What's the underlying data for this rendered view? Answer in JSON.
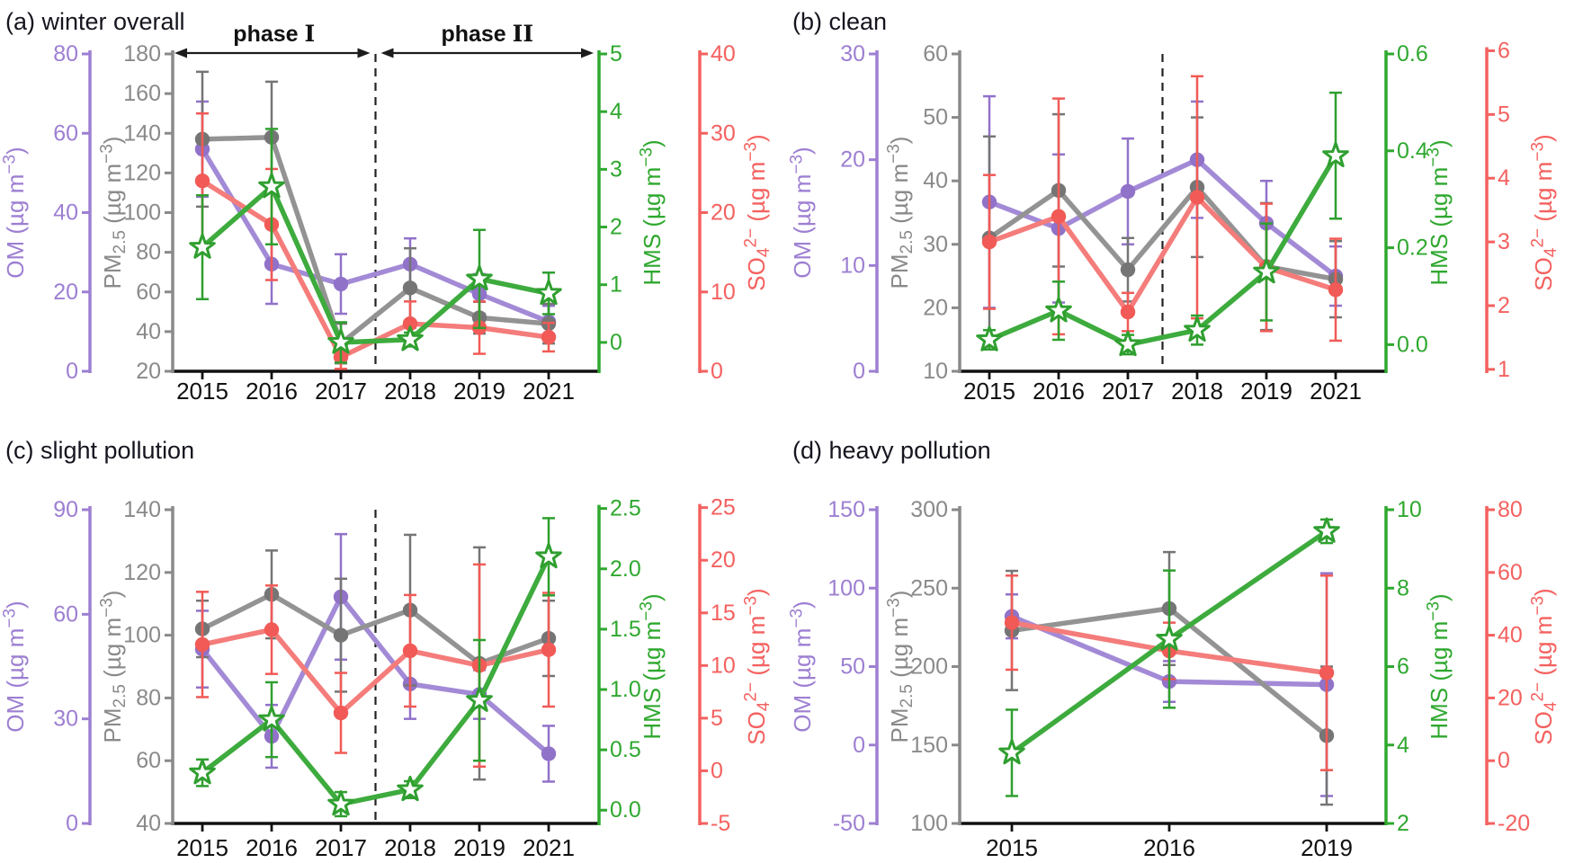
{
  "figure": {
    "background": "#ffffff",
    "text_color": "#15151f",
    "axis_black": "#111111"
  },
  "chart_data": {
    "type": "line",
    "description": "Four-panel multi-axis annual time series of OM, PM2.5, HMS and sulfate concentrations",
    "series_meta": {
      "om": {
        "name": "OM",
        "marker": "circle",
        "line_color": "#a38ad6",
        "marker_color": "#9172c9",
        "axis_color": "#9d7fd2",
        "axis_title_tokens": [
          [
            "t",
            "OM (µg m"
          ],
          [
            "sup",
            "−3"
          ],
          [
            "t",
            ")"
          ]
        ]
      },
      "pm": {
        "name": "PM2.5",
        "marker": "circle",
        "line_color": "#939393",
        "marker_color": "#757575",
        "axis_color": "#8a8a8a",
        "axis_title_tokens": [
          [
            "t",
            "PM"
          ],
          [
            "sub",
            "2.5"
          ],
          [
            "t",
            " (µg m"
          ],
          [
            "sup",
            "−3"
          ],
          [
            "t",
            ")"
          ]
        ]
      },
      "so4": {
        "name": "SO4 2−",
        "marker": "circle",
        "line_color": "#f47c7a",
        "marker_color": "#f15a56",
        "axis_color": "#f4615f",
        "axis_title_tokens": [
          [
            "t",
            "SO"
          ],
          [
            "sub",
            "4"
          ],
          [
            "sup",
            "2−"
          ],
          [
            "t",
            " (µg m"
          ],
          [
            "sup",
            "−3"
          ],
          [
            "t",
            ")"
          ]
        ]
      },
      "hms": {
        "name": "HMS",
        "marker": "star",
        "line_color": "#3dab3d",
        "marker_color": "#ffffff",
        "marker_stroke": "#2f9f2f",
        "axis_color": "#2fa82f",
        "axis_title_tokens": [
          [
            "t",
            "HMS (µg m"
          ],
          [
            "sup",
            "−3"
          ],
          [
            "t",
            ")"
          ]
        ]
      }
    },
    "panels": [
      {
        "key": "a",
        "row": 0,
        "col": 0,
        "title": "(a) winter overall",
        "x_labels": [
          "2015",
          "2016",
          "2017",
          "2018",
          "2019",
          "2021"
        ],
        "divider_between_indices": [
          2,
          3
        ],
        "phase_labels": [
          "phase I",
          "phase II"
        ],
        "axes": {
          "om": {
            "scale": [
              0,
              80
            ],
            "ticks": [
              0,
              20,
              40,
              60,
              80
            ],
            "tick_labels": [
              "0",
              "20",
              "40",
              "60",
              "80"
            ]
          },
          "pm": {
            "scale": [
              20,
              180
            ],
            "ticks": [
              20,
              40,
              60,
              80,
              100,
              120,
              140,
              160,
              180
            ],
            "tick_labels": [
              "20",
              "40",
              "60",
              "80",
              "100",
              "120",
              "140",
              "160",
              "180"
            ]
          },
          "hms": {
            "scale": [
              -0.5,
              5
            ],
            "ticks": [
              0,
              1,
              2,
              3,
              4,
              5
            ],
            "tick_labels": [
              "0",
              "1",
              "2",
              "3",
              "4",
              "5"
            ]
          },
          "so4": {
            "scale": [
              0,
              40
            ],
            "ticks": [
              0,
              10,
              20,
              30,
              40
            ],
            "tick_labels": [
              "0",
              "10",
              "20",
              "30",
              "40"
            ]
          }
        },
        "series": {
          "om": {
            "values": [
              56,
              27,
              22,
              27,
              19.5,
              12.5
            ],
            "err": [
              12,
              10,
              7.5,
              6.5,
              5,
              4
            ]
          },
          "pm": {
            "values": [
              137,
              138,
              34,
              62,
              47,
              44
            ],
            "err": [
              34,
              28,
              10,
              20,
              8,
              10
            ]
          },
          "so4": {
            "values": [
              24,
              18.5,
              1.8,
              6,
              5.5,
              4.3
            ],
            "err": [
              8.5,
              7,
              1.5,
              2.8,
              3.3,
              1.8
            ]
          },
          "hms": {
            "values": [
              1.65,
              2.7,
              0.0,
              0.05,
              1.1,
              0.85
            ],
            "err": [
              0.9,
              1.0,
              0.35,
              0.12,
              0.85,
              0.36
            ]
          }
        }
      },
      {
        "key": "b",
        "row": 0,
        "col": 1,
        "title": "(b) clean",
        "x_labels": [
          "2015",
          "2016",
          "2017",
          "2018",
          "2019",
          "2021"
        ],
        "divider_between_indices": [
          2,
          3
        ],
        "phase_labels": null,
        "axes": {
          "om": {
            "scale": [
              0,
              30
            ],
            "ticks": [
              0,
              10,
              20,
              30
            ],
            "tick_labels": [
              "0",
              "10",
              "20",
              "30"
            ]
          },
          "pm": {
            "scale": [
              10,
              60
            ],
            "ticks": [
              10,
              20,
              30,
              40,
              50,
              60
            ],
            "tick_labels": [
              "10",
              "20",
              "30",
              "40",
              "50",
              "60"
            ]
          },
          "hms": {
            "scale": [
              -0.055,
              0.6
            ],
            "ticks": [
              0,
              0.2,
              0.4,
              0.6
            ],
            "tick_labels": [
              "0.0",
              "0.2",
              "0.4",
              "0.6"
            ]
          },
          "so4": {
            "scale": [
              0.97,
              5.95
            ],
            "ticks": [
              1,
              2,
              3,
              4,
              5,
              6
            ],
            "tick_labels": [
              "1",
              "2",
              "3",
              "4",
              "5",
              "6"
            ]
          }
        },
        "series": {
          "om": {
            "values": [
              16,
              13.5,
              17,
              20,
              14,
              9
            ],
            "err": [
              10,
              7,
              5,
              5.5,
              4,
              2.8
            ]
          },
          "pm": {
            "values": [
              31,
              38.5,
              26,
              39,
              26.5,
              24.5
            ],
            "err": [
              16,
              12,
              5,
              11,
              10,
              6
            ]
          },
          "so4": {
            "values": [
              3.0,
              3.4,
              1.9,
              3.7,
              2.6,
              2.25
            ],
            "err": [
              1.05,
              1.85,
              0.3,
              1.9,
              1.0,
              0.8
            ]
          },
          "hms": {
            "values": [
              0.01,
              0.07,
              0.0,
              0.03,
              0.15,
              0.39
            ],
            "err": [
              0.02,
              0.06,
              0.02,
              0.03,
              0.1,
              0.13
            ]
          }
        }
      },
      {
        "key": "c",
        "row": 1,
        "col": 0,
        "title": "(c) slight pollution",
        "x_labels": [
          "2015",
          "2016",
          "2017",
          "2018",
          "2019",
          "2021"
        ],
        "divider_between_indices": [
          2,
          3
        ],
        "phase_labels": null,
        "axes": {
          "om": {
            "scale": [
              0,
              90
            ],
            "ticks": [
              0,
              30,
              60,
              90
            ],
            "tick_labels": [
              "0",
              "30",
              "60",
              "90"
            ]
          },
          "pm": {
            "scale": [
              40,
              140
            ],
            "ticks": [
              40,
              60,
              80,
              100,
              120,
              140
            ],
            "tick_labels": [
              "40",
              "60",
              "80",
              "100",
              "120",
              "140"
            ]
          },
          "hms": {
            "scale": [
              -0.11,
              2.49
            ],
            "ticks": [
              0,
              0.5,
              1,
              1.5,
              2,
              2.5
            ],
            "tick_labels": [
              "0.0",
              "0.5",
              "1.0",
              "1.5",
              "2.0",
              "2.5"
            ]
          },
          "so4": {
            "scale": [
              -5,
              24.8
            ],
            "ticks": [
              -5,
              0,
              5,
              10,
              15,
              20,
              25
            ],
            "tick_labels": [
              "-5",
              "0",
              "5",
              "10",
              "15",
              "20",
              "25"
            ]
          }
        },
        "series": {
          "om": {
            "values": [
              50,
              25,
              65,
              40,
              37,
              20
            ],
            "err": [
              11,
              9,
              18,
              10,
              7,
              8
            ]
          },
          "pm": {
            "values": [
              102,
              113,
              100,
              108,
              91,
              99
            ],
            "err": [
              9,
              14,
              18,
              24,
              37,
              12
            ]
          },
          "so4": {
            "values": [
              12,
              13.4,
              5.5,
              11.4,
              10,
              11.5
            ],
            "err": [
              5,
              4.2,
              3.8,
              5.3,
              9.6,
              5.4
            ]
          },
          "hms": {
            "values": [
              0.31,
              0.75,
              0.05,
              0.17,
              0.91,
              2.1
            ],
            "err": [
              0.11,
              0.31,
              0.1,
              0.07,
              0.5,
              0.32
            ]
          }
        }
      },
      {
        "key": "d",
        "row": 1,
        "col": 1,
        "title": "(d) heavy pollution",
        "x_labels": [
          "2015",
          "2016",
          "2019"
        ],
        "divider_between_indices": null,
        "phase_labels": null,
        "axes": {
          "om": {
            "scale": [
              -50,
              150
            ],
            "ticks": [
              -50,
              0,
              50,
              100,
              150
            ],
            "tick_labels": [
              "-50",
              "0",
              "50",
              "100",
              "150"
            ]
          },
          "pm": {
            "scale": [
              100,
              300
            ],
            "ticks": [
              100,
              150,
              200,
              250,
              300
            ],
            "tick_labels": [
              "100",
              "150",
              "200",
              "250",
              "300"
            ]
          },
          "hms": {
            "scale": [
              2,
              10
            ],
            "ticks": [
              2,
              4,
              6,
              8,
              10
            ],
            "tick_labels": [
              "2",
              "4",
              "6",
              "8",
              "10"
            ]
          },
          "so4": {
            "scale": [
              -20,
              80
            ],
            "ticks": [
              -20,
              0,
              20,
              40,
              60,
              80
            ],
            "tick_labels": [
              "-20",
              "0",
              "20",
              "40",
              "60",
              "80"
            ]
          }
        },
        "series": {
          "om": {
            "values": [
              82,
              40.5,
              38.5
            ],
            "err": [
              14,
              13,
              71
            ]
          },
          "pm": {
            "values": [
              223,
              237,
              156
            ],
            "err": [
              38,
              36,
              44
            ]
          },
          "so4": {
            "values": [
              44,
              35,
              28
            ],
            "err": [
              15,
              9,
              31
            ]
          },
          "hms": {
            "values": [
              3.8,
              6.7,
              9.45
            ],
            "err": [
              1.1,
              1.75,
              0.3
            ]
          }
        }
      }
    ]
  }
}
